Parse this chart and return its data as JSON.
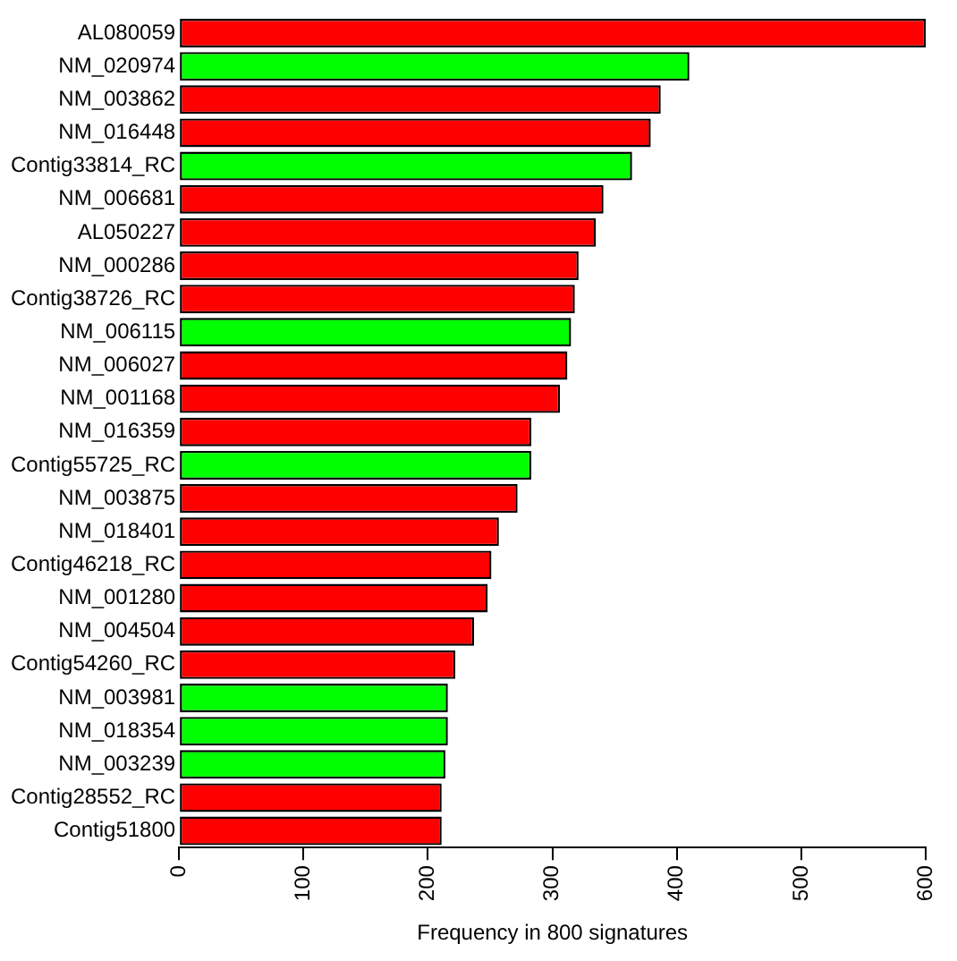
{
  "chart_data": {
    "type": "bar",
    "orientation": "horizontal",
    "xlabel": "Frequency in 800 signatures",
    "categories": [
      "AL080059",
      "NM_020974",
      "NM_003862",
      "NM_016448",
      "Contig33814_RC",
      "NM_006681",
      "AL050227",
      "NM_000286",
      "Contig38726_RC",
      "NM_006115",
      "NM_006027",
      "NM_001168",
      "NM_016359",
      "Contig55725_RC",
      "NM_003875",
      "NM_018401",
      "Contig46218_RC",
      "NM_001280",
      "NM_004504",
      "Contig54260_RC",
      "NM_003981",
      "NM_018354",
      "NM_003239",
      "Contig28552_RC",
      "Contig51800"
    ],
    "values": [
      600,
      410,
      387,
      379,
      364,
      341,
      335,
      321,
      318,
      315,
      312,
      306,
      283,
      283,
      272,
      257,
      251,
      248,
      237,
      222,
      216,
      216,
      214,
      211,
      211
    ],
    "colors": [
      "#ff0000",
      "#00ff00",
      "#ff0000",
      "#ff0000",
      "#00ff00",
      "#ff0000",
      "#ff0000",
      "#ff0000",
      "#ff0000",
      "#00ff00",
      "#ff0000",
      "#ff0000",
      "#ff0000",
      "#00ff00",
      "#ff0000",
      "#ff0000",
      "#ff0000",
      "#ff0000",
      "#ff0000",
      "#ff0000",
      "#00ff00",
      "#00ff00",
      "#00ff00",
      "#ff0000",
      "#ff0000"
    ],
    "xlim": [
      0,
      600
    ],
    "xticks": [
      0,
      100,
      200,
      300,
      400,
      500,
      600
    ],
    "grid": false,
    "legend": false
  }
}
